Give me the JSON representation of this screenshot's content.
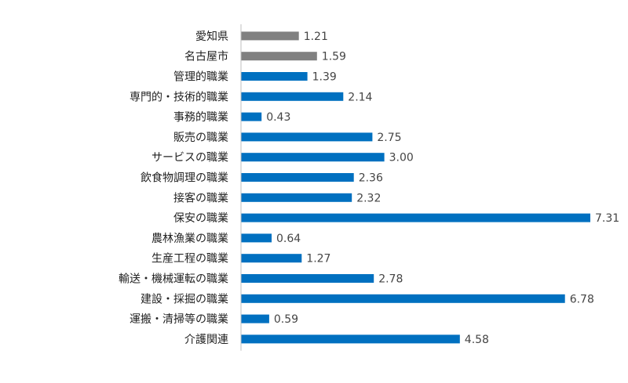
{
  "chart_data": {
    "type": "bar",
    "orientation": "horizontal",
    "categories": [
      "愛知県",
      "名古屋市",
      "管理的職業",
      "専門的・技術的職業",
      "事務的職業",
      "販売の職業",
      "サービスの職業",
      "飲食物調理の職業",
      "接客の職業",
      "保安の職業",
      "農林漁業の職業",
      "生産工程の職業",
      "輸送・機械運転の職業",
      "建設・採掘の職業",
      "運搬・清掃等の職業",
      "介護関連"
    ],
    "values": [
      1.21,
      1.59,
      1.39,
      2.14,
      0.43,
      2.75,
      3.0,
      2.36,
      2.32,
      7.31,
      0.64,
      1.27,
      2.78,
      6.78,
      0.59,
      4.58
    ],
    "value_labels": [
      "1.21",
      "1.59",
      "1.39",
      "2.14",
      "0.43",
      "2.75",
      "3.00",
      "2.36",
      "2.32",
      "7.31",
      "0.64",
      "1.27",
      "2.78",
      "6.78",
      "0.59",
      "4.58"
    ],
    "bar_colors": [
      "#808080",
      "#808080",
      "#0070c0",
      "#0070c0",
      "#0070c0",
      "#0070c0",
      "#0070c0",
      "#0070c0",
      "#0070c0",
      "#0070c0",
      "#0070c0",
      "#0070c0",
      "#0070c0",
      "#0070c0",
      "#0070c0",
      "#0070c0"
    ],
    "title": "",
    "xlabel": "",
    "ylabel": "",
    "xlim": [
      0,
      7.6
    ],
    "grid": false,
    "legend": false
  }
}
